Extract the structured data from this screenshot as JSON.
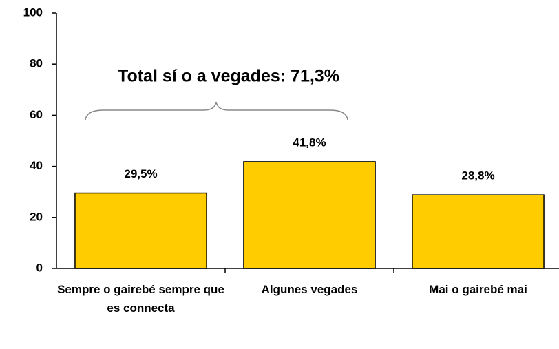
{
  "chart_data": {
    "type": "bar",
    "annotation": "Total sí o a vegades: 71,3%",
    "categories": [
      "Sempre o gairebé sempre que es connecta",
      "Algunes vegades",
      "Mai o gairebé mai"
    ],
    "values": [
      29.5,
      41.8,
      28.8
    ],
    "value_labels": [
      "29,5%",
      "41,8%",
      "28,8%"
    ],
    "color": "#ffcc00",
    "ylim": [
      0,
      100
    ],
    "yticks": [
      0,
      20,
      40,
      60,
      80,
      100
    ],
    "grid": false
  }
}
